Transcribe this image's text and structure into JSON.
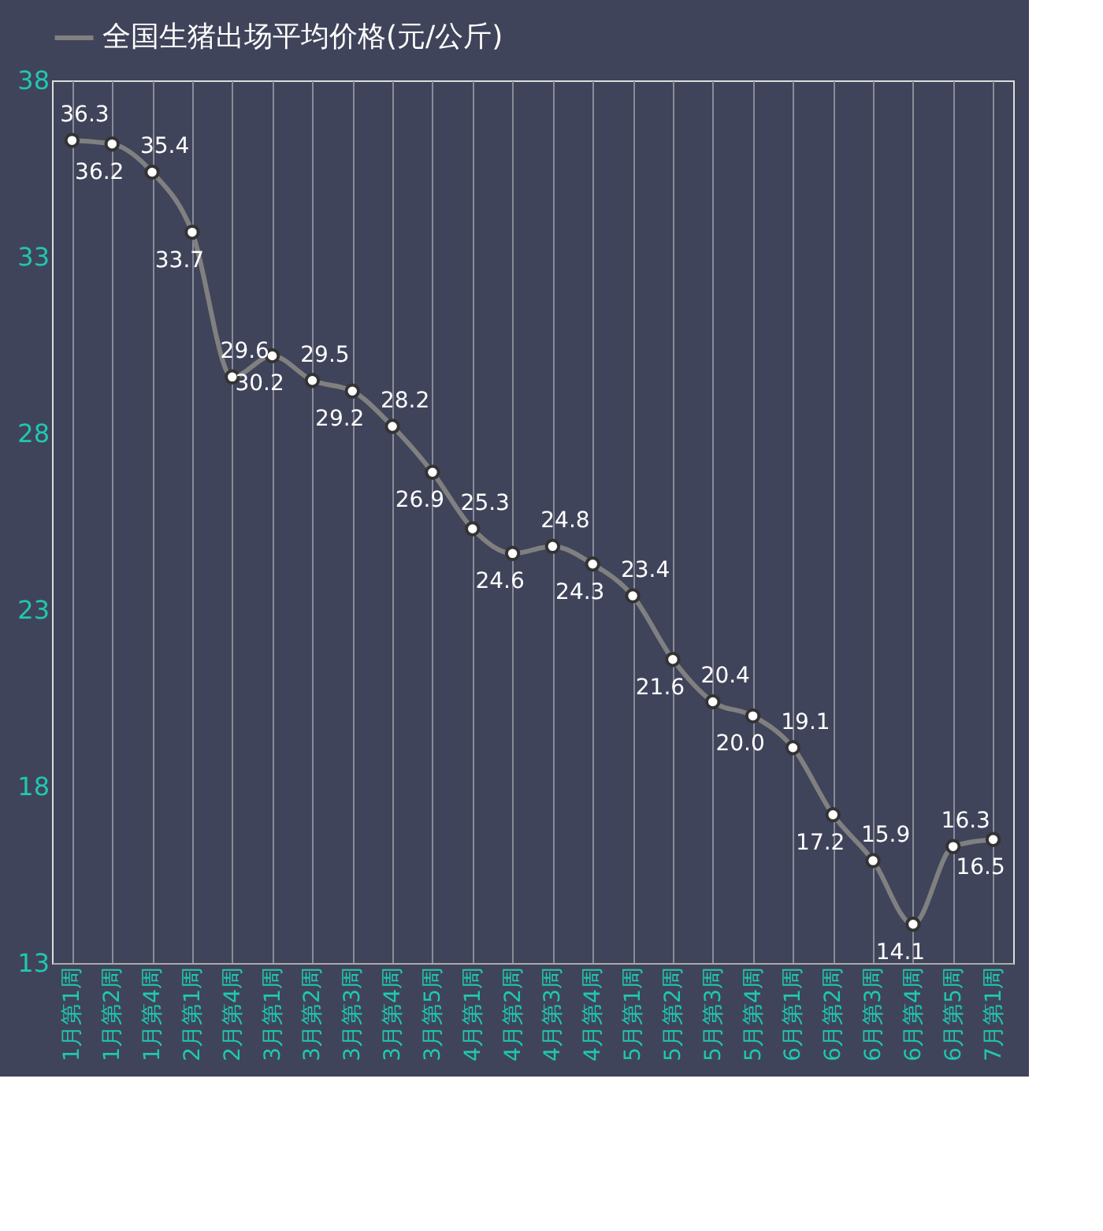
{
  "chart_data": {
    "type": "line",
    "categories": [
      "1月第1周",
      "1月第2周",
      "1月第4周",
      "2月第1周",
      "2月第4周",
      "3月第1周",
      "3月第2周",
      "3月第3周",
      "3月第4周",
      "3月第5周",
      "4月第1周",
      "4月第2周",
      "4月第3周",
      "4月第4周",
      "5月第1周",
      "5月第2周",
      "5月第3周",
      "5月第4周",
      "6月第1周",
      "6月第2周",
      "6月第3周",
      "6月第4周",
      "6月第5周",
      "7月第1周"
    ],
    "series": [
      {
        "name": "全国生猪出场平均价格(元/公斤)",
        "color": "#808080",
        "values": [
          36.3,
          36.2,
          35.4,
          33.7,
          29.6,
          30.2,
          29.5,
          29.2,
          28.2,
          26.9,
          25.3,
          24.6,
          24.8,
          24.3,
          23.4,
          21.6,
          20.4,
          20.0,
          19.1,
          17.2,
          15.9,
          14.1,
          16.3,
          16.5
        ]
      }
    ],
    "ylim": [
      13,
      38
    ],
    "yticks": [
      13,
      18,
      23,
      28,
      33,
      38
    ],
    "value_labels": [
      "36.3",
      "36.2",
      "35.4",
      "33.7",
      "29.6",
      "30.2",
      "29.5",
      "29.2",
      "28.2",
      "26.9",
      "25.3",
      "24.6",
      "24.8",
      "24.3",
      "23.4",
      "21.6",
      "20.4",
      "20.0",
      "19.1",
      "17.2",
      "15.9",
      "14.1",
      "16.3",
      "16.5"
    ],
    "grid": "x",
    "legend": "top",
    "marker": "circle",
    "line_style": "solid"
  }
}
